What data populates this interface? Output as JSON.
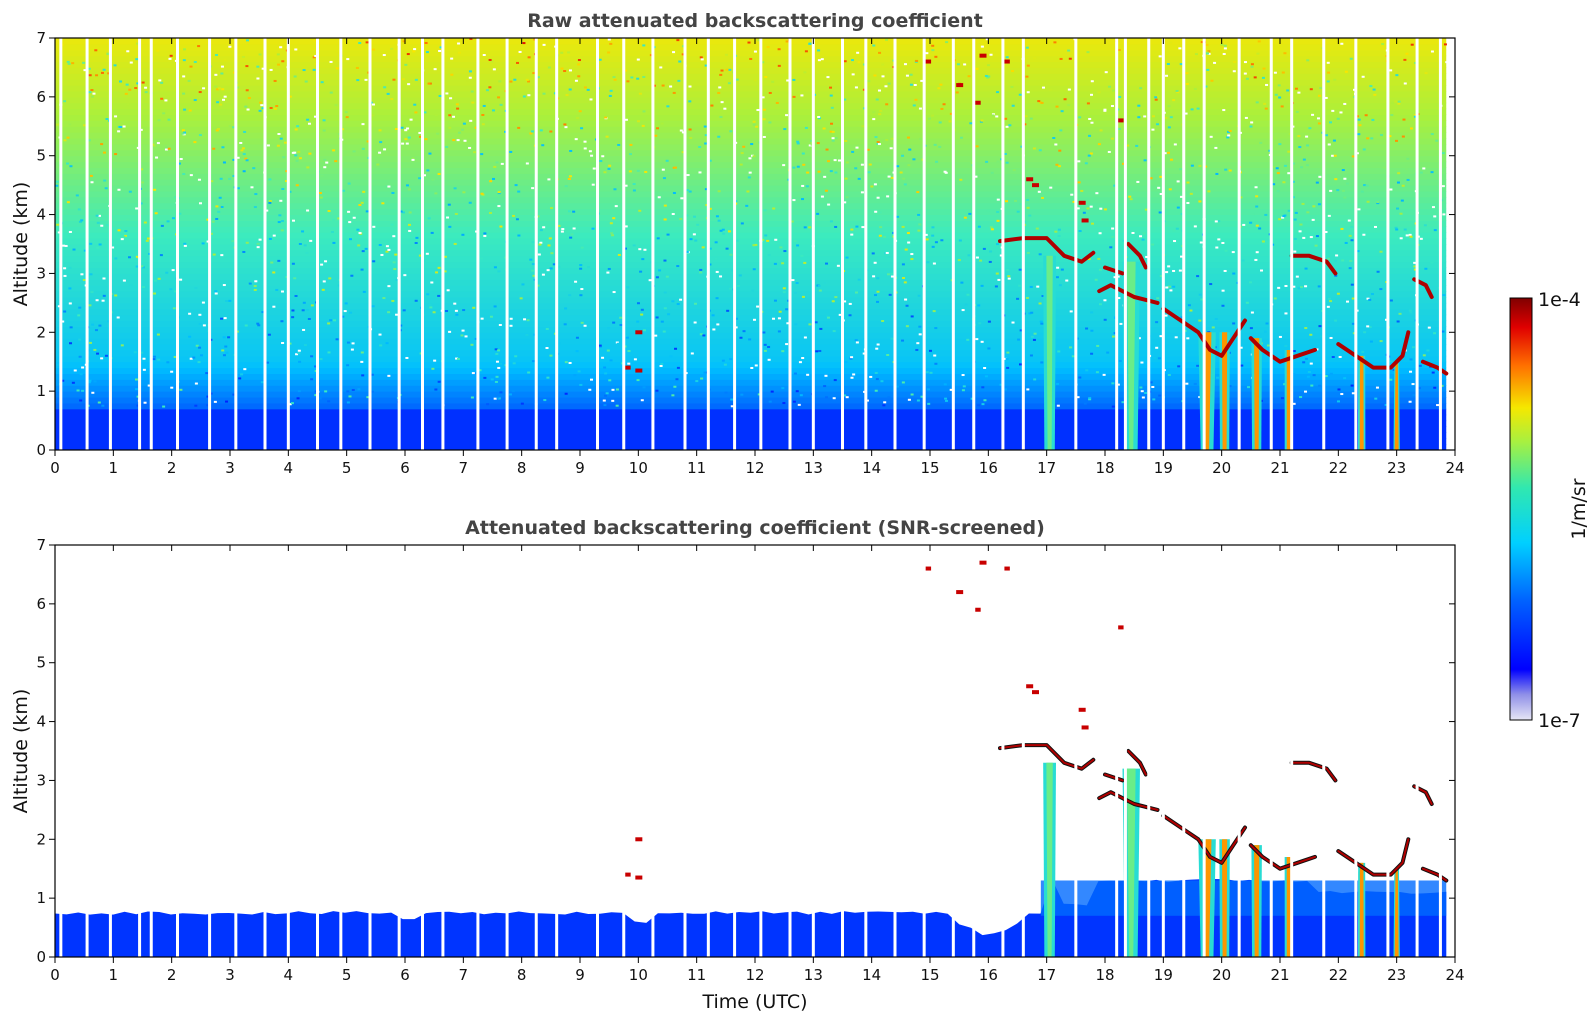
{
  "chart_data": [
    {
      "type": "heatmap",
      "title": "Raw attenuated backscattering coefficient",
      "xlabel": "",
      "ylabel": "Altitude (km)",
      "xlim": [
        0,
        24
      ],
      "ylim": [
        0,
        7
      ],
      "xticks": [
        "0",
        "1",
        "2",
        "3",
        "4",
        "5",
        "6",
        "7",
        "8",
        "9",
        "10",
        "11",
        "12",
        "13",
        "14",
        "15",
        "16",
        "17",
        "18",
        "19",
        "20",
        "21",
        "22",
        "23",
        "24"
      ],
      "yticks": [
        "0",
        "1",
        "2",
        "3",
        "4",
        "5",
        "6",
        "7"
      ],
      "screened": false,
      "grid": false
    },
    {
      "type": "heatmap",
      "title": "Attenuated backscattering coefficient (SNR-screened)",
      "xlabel": "Time (UTC)",
      "ylabel": "Altitude (km)",
      "xlim": [
        0,
        24
      ],
      "ylim": [
        0,
        7
      ],
      "xticks": [
        "0",
        "1",
        "2",
        "3",
        "4",
        "5",
        "6",
        "7",
        "8",
        "9",
        "10",
        "11",
        "12",
        "13",
        "14",
        "15",
        "16",
        "17",
        "18",
        "19",
        "20",
        "21",
        "22",
        "23",
        "24"
      ],
      "yticks": [
        "0",
        "1",
        "2",
        "3",
        "4",
        "5",
        "6",
        "7"
      ],
      "screened": true,
      "grid": false
    }
  ],
  "colorbar": {
    "label": "1/m/sr",
    "min_label": "1e-7",
    "max_label": "1e-4",
    "scale": "log",
    "colormap": "jet"
  },
  "features": {
    "data_end_hour": 23.85,
    "surface_layer_top_km": 0.75,
    "gap_times_hours": [
      0.1,
      0.55,
      0.95,
      1.45,
      1.65,
      2.1,
      2.65,
      3.1,
      3.6,
      4.0,
      4.5,
      4.9,
      5.4,
      5.9,
      6.3,
      6.65,
      7.25,
      7.75,
      8.25,
      8.6,
      9.3,
      9.75,
      10.25,
      10.8,
      11.2,
      11.65,
      12.1,
      12.6,
      13.0,
      13.5,
      13.9,
      14.4,
      14.9,
      15.4,
      15.75,
      16.25,
      16.6,
      17.5,
      18.2,
      18.35,
      18.75,
      19.0,
      19.35,
      19.7,
      20.3,
      20.85,
      21.2,
      21.75,
      22.3,
      22.85,
      23.35,
      23.75
    ],
    "rain_shafts": [
      {
        "t": 17.05,
        "top": 3.3,
        "width": 0.22
      },
      {
        "t": 18.45,
        "top": 3.2,
        "width": 0.3
      },
      {
        "t": 19.75,
        "top": 2.0,
        "width": 0.3
      },
      {
        "t": 20.05,
        "top": 2.0,
        "width": 0.18
      },
      {
        "t": 20.6,
        "top": 1.9,
        "width": 0.18
      },
      {
        "t": 21.15,
        "top": 1.7,
        "width": 0.14
      },
      {
        "t": 22.4,
        "top": 1.6,
        "width": 0.12
      },
      {
        "t": 23.0,
        "top": 1.5,
        "width": 0.08
      }
    ],
    "cloud_traces": [
      [
        [
          16.2,
          3.55
        ],
        [
          16.6,
          3.6
        ],
        [
          17.0,
          3.6
        ],
        [
          17.3,
          3.3
        ],
        [
          17.6,
          3.2
        ],
        [
          17.8,
          3.35
        ]
      ],
      [
        [
          17.9,
          2.7
        ],
        [
          18.1,
          2.8
        ],
        [
          18.5,
          2.6
        ],
        [
          18.9,
          2.5
        ]
      ],
      [
        [
          18.0,
          3.1
        ],
        [
          18.3,
          3.0
        ]
      ],
      [
        [
          18.4,
          3.5
        ],
        [
          18.6,
          3.3
        ],
        [
          18.7,
          3.1
        ]
      ],
      [
        [
          19.0,
          2.4
        ],
        [
          19.3,
          2.2
        ],
        [
          19.6,
          2.0
        ],
        [
          19.8,
          1.7
        ],
        [
          20.0,
          1.6
        ],
        [
          20.2,
          1.9
        ],
        [
          20.4,
          2.2
        ]
      ],
      [
        [
          20.5,
          1.9
        ],
        [
          20.7,
          1.7
        ],
        [
          21.0,
          1.5
        ],
        [
          21.3,
          1.6
        ],
        [
          21.6,
          1.7
        ]
      ],
      [
        [
          21.2,
          3.3
        ],
        [
          21.5,
          3.3
        ],
        [
          21.8,
          3.2
        ],
        [
          21.95,
          3.0
        ]
      ],
      [
        [
          22.0,
          1.8
        ],
        [
          22.3,
          1.6
        ],
        [
          22.6,
          1.4
        ],
        [
          22.9,
          1.4
        ],
        [
          23.1,
          1.6
        ],
        [
          23.2,
          2.0
        ]
      ],
      [
        [
          23.3,
          2.9
        ],
        [
          23.5,
          2.8
        ],
        [
          23.6,
          2.6
        ]
      ],
      [
        [
          23.45,
          1.5
        ],
        [
          23.7,
          1.4
        ],
        [
          23.85,
          1.3
        ]
      ]
    ],
    "high_specks": [
      [
        16.7,
        4.6
      ],
      [
        16.8,
        4.5
      ],
      [
        17.6,
        4.2
      ],
      [
        17.65,
        3.9
      ],
      [
        18.25,
        5.6
      ],
      [
        15.9,
        6.7
      ],
      [
        16.3,
        6.6
      ],
      [
        15.5,
        6.2
      ],
      [
        15.8,
        5.9
      ],
      [
        14.95,
        6.6
      ],
      [
        10.0,
        2.0
      ],
      [
        10.0,
        1.35
      ],
      [
        9.8,
        1.4
      ]
    ]
  }
}
